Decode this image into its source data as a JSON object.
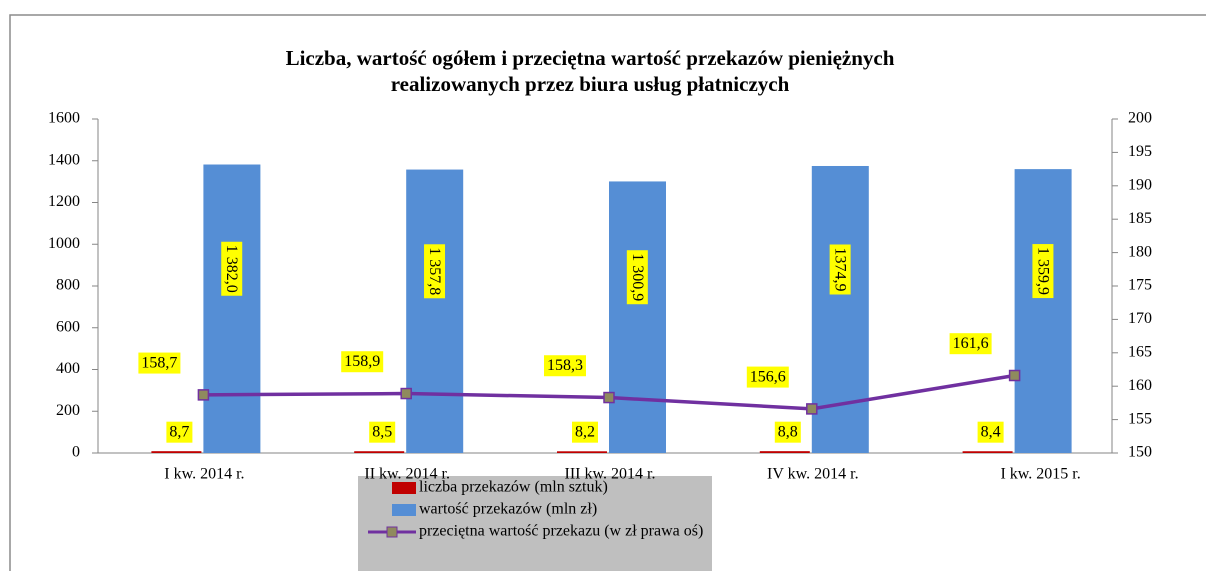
{
  "chart_data": {
    "type": "bar",
    "title": [
      "Liczba, wartość ogółem i przeciętna wartość przekazów pieniężnych",
      "realizowanych przez biura usług płatniczych"
    ],
    "categories": [
      "I kw. 2014 r.",
      "II kw. 2014 r.",
      "III kw. 2014 r.",
      "IV kw. 2014 r.",
      "I kw. 2015 r."
    ],
    "series": [
      {
        "name": "liczba przekazów (mln sztuk)",
        "color": "#c00000",
        "values": [
          8.7,
          8.5,
          8.2,
          8.8,
          8.4
        ],
        "value_labels": [
          "8,7",
          "8,5",
          "8,2",
          "8,8",
          "8,4"
        ]
      },
      {
        "name": "wartość przekazów (mln zł)",
        "color": "#558ed5",
        "values": [
          1382.0,
          1357.8,
          1300.9,
          1374.9,
          1359.9
        ],
        "value_labels": [
          "1 382,0",
          "1 357,8",
          "1 300,9",
          "1374,9",
          "1 359,9"
        ]
      },
      {
        "name": "przeciętna wartość przekazu (w zł prawa oś)",
        "color": "#7030a0",
        "type": "line",
        "axis": "y2",
        "values": [
          158.7,
          158.9,
          158.3,
          156.6,
          161.6
        ],
        "value_labels": [
          "158,7",
          "158,9",
          "158,3",
          "156,6",
          "161,6"
        ]
      }
    ],
    "ylim": [
      0,
      1600
    ],
    "yticks": [
      0,
      200,
      400,
      600,
      800,
      1000,
      1200,
      1400,
      1600
    ],
    "y2lim": [
      150,
      200
    ],
    "y2ticks": [
      150,
      155,
      160,
      165,
      170,
      175,
      180,
      185,
      190,
      195,
      200
    ]
  }
}
